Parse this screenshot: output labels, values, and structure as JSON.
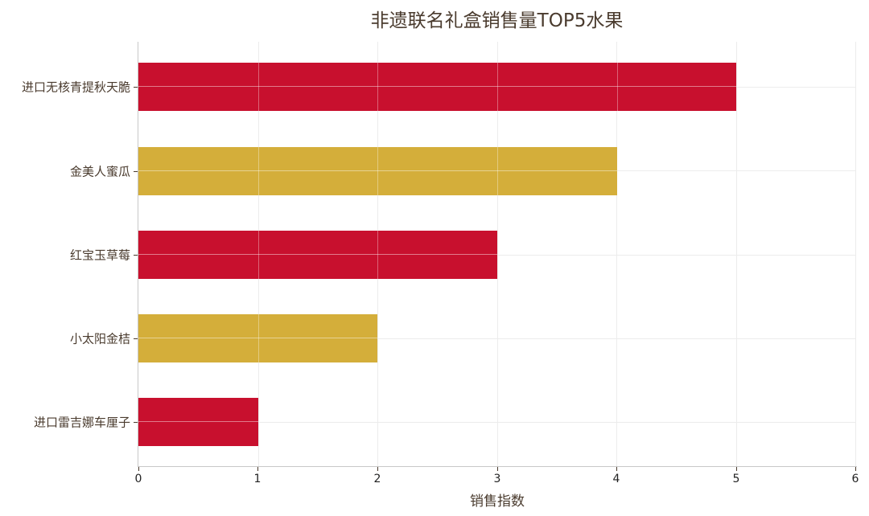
{
  "chart_data": {
    "type": "bar",
    "orientation": "horizontal",
    "title": "非遗联名礼盒销售量TOP5水果",
    "xlabel": "销售指数",
    "ylabel": "",
    "categories": [
      "进口无核青提秋天脆",
      "金美人蜜瓜",
      "红宝玉草莓",
      "小太阳金桔",
      "进口雷吉娜车厘子"
    ],
    "values": [
      5,
      4,
      3,
      2,
      1
    ],
    "bar_colors": [
      "#c8102e",
      "#d4ae3a",
      "#c8102e",
      "#d4ae3a",
      "#c8102e"
    ],
    "xlim": [
      0,
      6
    ],
    "xticks": [
      "0",
      "1",
      "2",
      "3",
      "4",
      "5",
      "6"
    ],
    "grid": true,
    "legend": null
  },
  "title": "非遗联名礼盒销售量TOP5水果",
  "x_axis_title": "销售指数",
  "x_ticks": [
    "0",
    "1",
    "2",
    "3",
    "4",
    "5",
    "6"
  ],
  "y_labels": [
    "进口无核青提秋天脆",
    "金美人蜜瓜",
    "红宝玉草莓",
    "小太阳金桔",
    "进口雷吉娜车厘子"
  ]
}
